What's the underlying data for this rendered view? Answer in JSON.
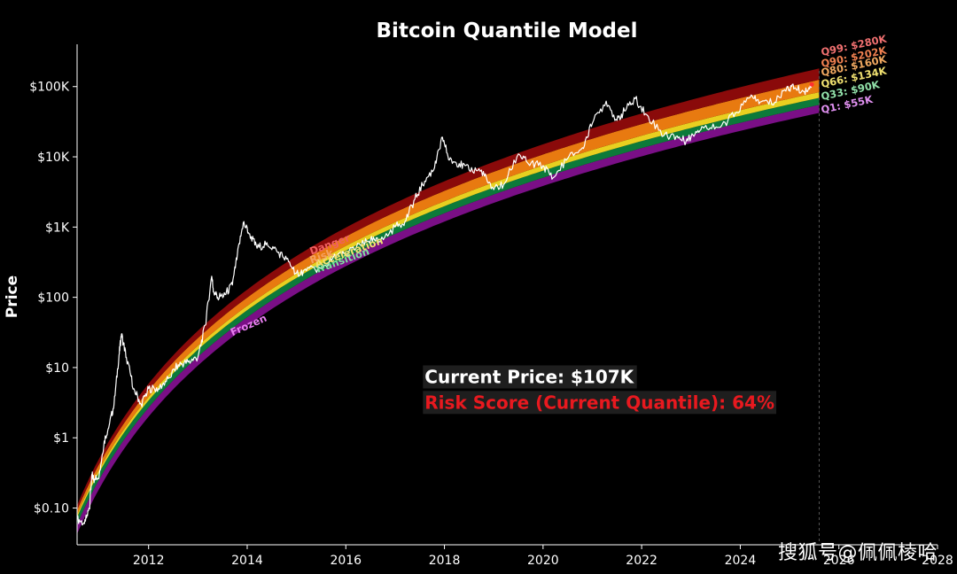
{
  "watermark": "搜狐号@佩佩棱哈",
  "chart_data": {
    "type": "area",
    "title": "Bitcoin Quantile Model",
    "xlabel": "",
    "ylabel": "Price",
    "y_scale": "log",
    "xlim": [
      2010.55,
      2028.0
    ],
    "ylim": [
      0.03,
      400000
    ],
    "x_ticks": [
      2012,
      2014,
      2016,
      2018,
      2020,
      2022,
      2024,
      2026,
      2028
    ],
    "x_tick_labels": [
      "2012",
      "2014",
      "2016",
      "2018",
      "2020",
      "2022",
      "2024",
      "2026",
      "2028"
    ],
    "y_ticks": [
      0.1,
      1,
      10,
      100,
      1000,
      10000,
      100000
    ],
    "y_tick_labels": [
      "$0.10",
      "$1",
      "$10",
      "$100",
      "$1K",
      "$10K",
      "$100K"
    ],
    "grid": false,
    "current_date_marker": 2025.6,
    "bands": [
      {
        "name": "Frozen",
        "color": "#7a0f86",
        "label_color": "#e87ef0",
        "label_x": 2013.7
      },
      {
        "name": "Transition",
        "color": "#0c7a3a",
        "label_color": "#7fe0a0",
        "label_x": 2015.4
      },
      {
        "name": "Acceleration",
        "color": "#e8d020",
        "label_color": "#f2e070",
        "label_x": 2015.4
      },
      {
        "name": "Risk",
        "color": "#e87a10",
        "label_color": "#f4a060",
        "label_x": 2015.3
      },
      {
        "name": "Danger",
        "color": "#8a0a0a",
        "label_color": "#f06060",
        "label_x": 2015.3
      }
    ],
    "quantiles": [
      {
        "name": "Q1",
        "value": 55000,
        "label": "Q1: $55K",
        "color": "#e090f0"
      },
      {
        "name": "Q33",
        "value": 90000,
        "label": "Q33: $90K",
        "color": "#90e0a8"
      },
      {
        "name": "Q66",
        "value": 134000,
        "label": "Q66: $134K",
        "color": "#f0e070"
      },
      {
        "name": "Q80",
        "value": 160000,
        "label": "Q80: $160K",
        "color": "#f0a860"
      },
      {
        "name": "Q90",
        "value": 202000,
        "label": "Q90: $202K",
        "color": "#f08050"
      },
      {
        "name": "Q99",
        "value": 280000,
        "label": "Q99: $280K",
        "color": "#f07070"
      }
    ],
    "price_series": {
      "name": "",
      "color": "#ffffff",
      "x": [
        2010.55,
        2010.7,
        2010.8,
        2010.85,
        2010.9,
        2011.0,
        2011.1,
        2011.2,
        2011.3,
        2011.4,
        2011.45,
        2011.55,
        2011.7,
        2011.85,
        2012.0,
        2012.2,
        2012.4,
        2012.6,
        2012.8,
        2013.0,
        2013.15,
        2013.28,
        2013.32,
        2013.4,
        2013.55,
        2013.7,
        2013.8,
        2013.92,
        2014.05,
        2014.2,
        2014.4,
        2014.6,
        2014.8,
        2015.0,
        2015.2,
        2015.5,
        2015.8,
        2016.0,
        2016.3,
        2016.5,
        2016.7,
        2017.0,
        2017.2,
        2017.4,
        2017.6,
        2017.8,
        2017.96,
        2018.1,
        2018.3,
        2018.5,
        2018.75,
        2018.95,
        2019.2,
        2019.5,
        2019.7,
        2020.0,
        2020.2,
        2020.5,
        2020.8,
        2021.0,
        2021.28,
        2021.5,
        2021.65,
        2021.87,
        2022.1,
        2022.45,
        2022.7,
        2022.9,
        2023.1,
        2023.3,
        2023.6,
        2023.9,
        2024.2,
        2024.4,
        2024.7,
        2024.95,
        2025.1,
        2025.3,
        2025.45
      ],
      "values": [
        0.07,
        0.06,
        0.1,
        0.3,
        0.25,
        0.3,
        0.9,
        1.5,
        3.0,
        15,
        30,
        14,
        5,
        3,
        5,
        5,
        7,
        11,
        12,
        14,
        40,
        200,
        120,
        100,
        110,
        150,
        400,
        1150,
        800,
        500,
        600,
        450,
        350,
        220,
        240,
        260,
        380,
        420,
        550,
        650,
        620,
        1000,
        1200,
        2500,
        4500,
        7000,
        19000,
        9000,
        8000,
        6500,
        6500,
        3500,
        4000,
        11000,
        8000,
        7500,
        5000,
        9500,
        13500,
        30000,
        62000,
        33000,
        45000,
        67000,
        40000,
        20000,
        19500,
        16500,
        23000,
        28000,
        26500,
        42000,
        70000,
        60000,
        60000,
        100000,
        95000,
        85000,
        107000
      ]
    },
    "annotations": [
      {
        "text": "Current Price: $107K",
        "x": 2017.6,
        "y": 6.0
      },
      {
        "text": "Risk Score (Current Quantile): 64%",
        "x": 2017.6,
        "y": 2.6
      }
    ]
  }
}
